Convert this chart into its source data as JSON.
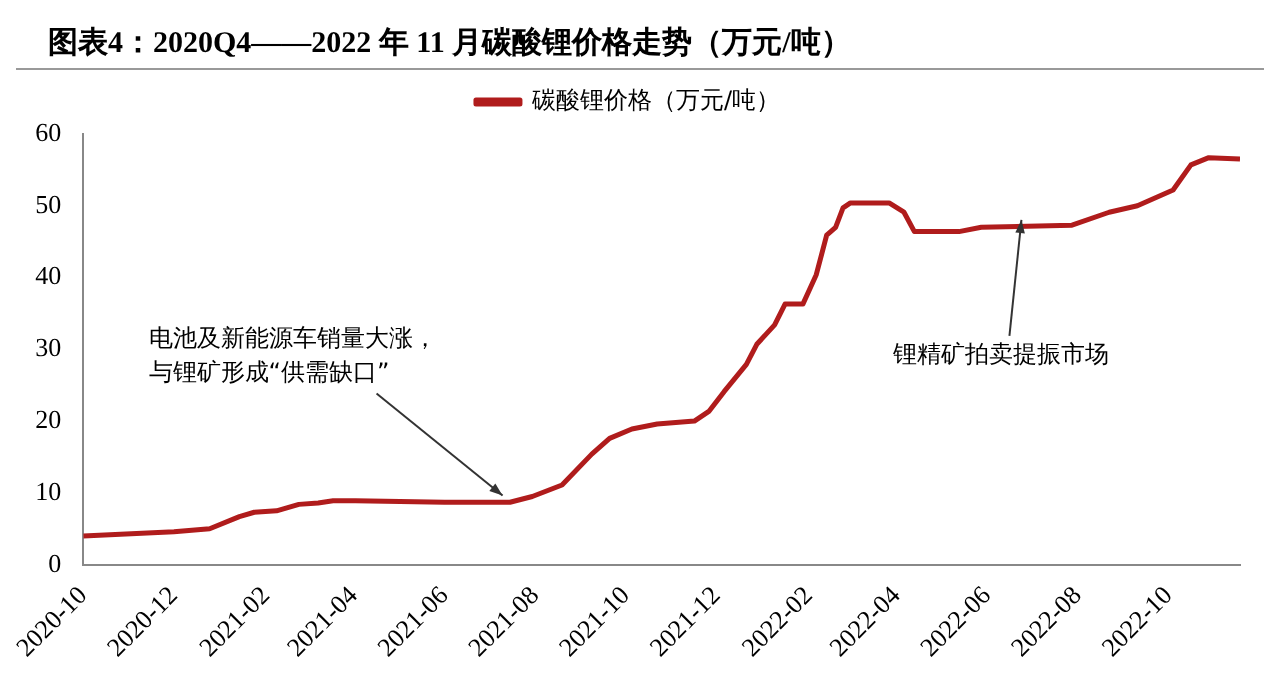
{
  "chart_data": {
    "type": "line",
    "title": "图表4：2020Q4——2022 年 11 月碳酸锂价格走势（万元/吨）",
    "x": [
      "2020-10-01",
      "2020-12-01",
      "2020-12-25",
      "2021-01-14",
      "2021-01-24",
      "2021-02-08",
      "2021-02-23",
      "2021-03-08",
      "2021-03-18",
      "2021-04-02",
      "2021-06-01",
      "2021-07-15",
      "2021-07-30",
      "2021-08-19",
      "2021-09-08",
      "2021-09-20",
      "2021-10-05",
      "2021-10-22",
      "2021-11-16",
      "2021-11-26",
      "2021-12-06",
      "2021-12-21",
      "2021-12-28",
      "2022-01-09",
      "2022-01-16",
      "2022-01-28",
      "2022-02-06",
      "2022-02-13",
      "2022-02-19",
      "2022-02-24",
      "2022-03-01",
      "2022-03-27",
      "2022-04-06",
      "2022-04-13",
      "2022-05-13",
      "2022-05-28",
      "2022-07-28",
      "2022-08-22",
      "2022-09-10",
      "2022-10-04",
      "2022-10-16",
      "2022-10-28",
      "2022-11-18"
    ],
    "series": [
      {
        "name": "碳酸锂价格（万元/吨）",
        "color": "#b01c1c",
        "values": [
          4.0,
          4.6,
          5.0,
          6.7,
          7.3,
          7.5,
          8.4,
          8.6,
          8.9,
          8.9,
          8.7,
          8.7,
          9.5,
          11.1,
          15.4,
          17.6,
          18.9,
          19.6,
          20.0,
          21.4,
          24.1,
          27.9,
          30.7,
          33.4,
          36.3,
          36.3,
          40.4,
          45.9,
          47.0,
          49.7,
          50.4,
          50.4,
          49.1,
          46.4,
          46.4,
          47.0,
          47.3,
          49.1,
          50.0,
          52.2,
          55.7,
          56.7,
          56.5
        ]
      }
    ],
    "xlim": [
      "2020-10-01",
      "2022-11-18"
    ],
    "xticks": [
      "2020-10",
      "2020-12",
      "2021-02",
      "2021-04",
      "2021-06",
      "2021-08",
      "2021-10",
      "2021-12",
      "2022-02",
      "2022-04",
      "2022-06",
      "2022-08",
      "2022-10"
    ],
    "ylim": [
      0,
      60
    ],
    "yticks": [
      0,
      10,
      20,
      30,
      40,
      50,
      60
    ],
    "grid": false,
    "legend": "top",
    "marker": "none",
    "line_style": "solid",
    "annotations": [
      {
        "text": "电池及新能源车销量大涨，与锂矿形成“供需缺口”",
        "x": "2021-07-10",
        "y": 8.8
      },
      {
        "text": "锂精矿拍卖提振市场",
        "x": "2022-06-24",
        "y": 47.2
      }
    ]
  }
}
